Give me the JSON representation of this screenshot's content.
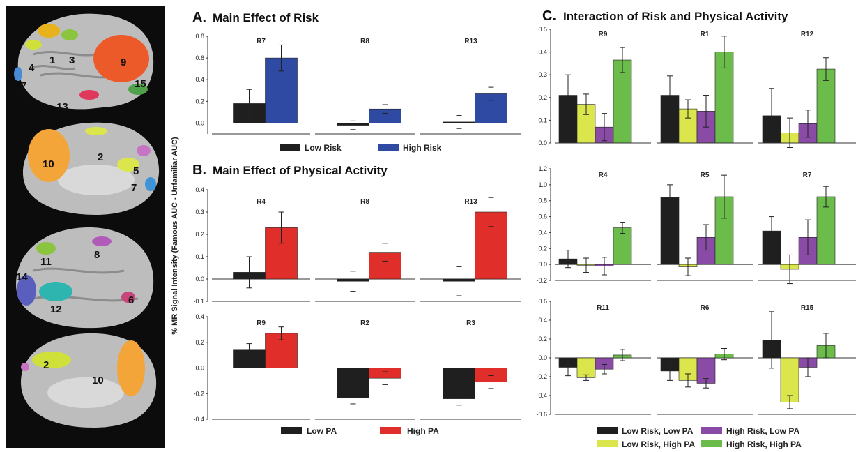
{
  "colors": {
    "low": "#1f1f1f",
    "high_risk": "#2e4aa3",
    "high_pa": "#e02f2a",
    "lr_lpa": "#1f1f1f",
    "lr_hpa": "#dbe64c",
    "hr_lpa": "#8a4ba6",
    "hr_hpa": "#6bbc4a"
  },
  "brain": {
    "labels": [
      "1",
      "3",
      "4",
      "7",
      "9",
      "15",
      "13",
      "10",
      "2",
      "5",
      "7",
      "11",
      "8",
      "14",
      "12",
      "6",
      "2",
      "10"
    ]
  },
  "panels": {
    "a": {
      "letter": "A.",
      "title": "Main Effect of Risk"
    },
    "b": {
      "letter": "B.",
      "title": "Main Effect of Physical Activity"
    },
    "c": {
      "letter": "C.",
      "title": "Interaction of Risk and Physical Activity"
    }
  },
  "y_axis_label": "% MR Signal Intensity (Famous AUC - Unfamiliar AUC)",
  "legends": {
    "a": [
      "Low Risk",
      "High Risk"
    ],
    "b": [
      "Low PA",
      "High PA"
    ],
    "c": [
      "Low Risk, Low PA",
      "High Risk, Low PA",
      "Low Risk, High PA",
      "High Risk, High PA"
    ]
  },
  "chart_data": [
    {
      "type": "bar",
      "panel": "A",
      "title": "Main Effect of Risk",
      "ylim": [
        -0.1,
        0.8
      ],
      "yticks": [
        0.0,
        0.2,
        0.4,
        0.6,
        0.8
      ],
      "series_names": [
        "Low Risk",
        "High Risk"
      ],
      "regions": [
        {
          "name": "R7",
          "values": [
            0.18,
            0.6
          ],
          "errors": [
            0.13,
            0.12
          ]
        },
        {
          "name": "R8",
          "values": [
            -0.02,
            0.13
          ],
          "errors": [
            0.04,
            0.04
          ]
        },
        {
          "name": "R13",
          "values": [
            0.01,
            0.27
          ],
          "errors": [
            0.06,
            0.06
          ]
        }
      ]
    },
    {
      "type": "bar",
      "panel": "B",
      "title": "Main Effect of Physical Activity",
      "ylim": [
        -0.1,
        0.4
      ],
      "yticks": [
        -0.1,
        0.0,
        0.1,
        0.2,
        0.3,
        0.4
      ],
      "series_names": [
        "Low PA",
        "High PA"
      ],
      "regions": [
        {
          "name": "R4",
          "values": [
            0.03,
            0.23
          ],
          "errors": [
            0.07,
            0.07
          ]
        },
        {
          "name": "R8",
          "values": [
            -0.01,
            0.12
          ],
          "errors": [
            0.045,
            0.04
          ]
        },
        {
          "name": "R13",
          "values": [
            -0.01,
            0.3
          ],
          "errors": [
            0.065,
            0.065
          ]
        }
      ]
    },
    {
      "type": "bar",
      "panel": "B",
      "title": "",
      "ylim": [
        -0.4,
        0.4
      ],
      "yticks": [
        -0.4,
        -0.2,
        0.0,
        0.2,
        0.4
      ],
      "series_names": [
        "Low PA",
        "High PA"
      ],
      "regions": [
        {
          "name": "R9",
          "values": [
            0.14,
            0.27
          ],
          "errors": [
            0.05,
            0.05
          ]
        },
        {
          "name": "R2",
          "values": [
            -0.23,
            -0.08
          ],
          "errors": [
            0.05,
            0.05
          ]
        },
        {
          "name": "R3",
          "values": [
            -0.24,
            -0.11
          ],
          "errors": [
            0.05,
            0.05
          ]
        }
      ]
    },
    {
      "type": "bar",
      "panel": "C",
      "title": "Interaction of Risk and Physical Activity",
      "ylim": [
        0,
        0.5
      ],
      "yticks": [
        0.0,
        0.1,
        0.2,
        0.3,
        0.4,
        0.5
      ],
      "series_names": [
        "Low Risk, Low PA",
        "Low Risk, High PA",
        "High Risk, Low PA",
        "High Risk, High PA"
      ],
      "regions": [
        {
          "name": "R9",
          "values": [
            0.21,
            0.17,
            0.07,
            0.365
          ],
          "errors": [
            0.09,
            0.045,
            0.06,
            0.055
          ]
        },
        {
          "name": "R1",
          "values": [
            0.21,
            0.15,
            0.14,
            0.4
          ],
          "errors": [
            0.085,
            0.04,
            0.07,
            0.07
          ]
        },
        {
          "name": "R12",
          "values": [
            0.12,
            0.045,
            0.085,
            0.325
          ],
          "errors": [
            0.12,
            0.065,
            0.06,
            0.05
          ]
        }
      ]
    },
    {
      "type": "bar",
      "panel": "C",
      "title": "",
      "ylim": [
        -0.2,
        1.2
      ],
      "yticks": [
        -0.2,
        0.0,
        0.2,
        0.4,
        0.6,
        0.8,
        1.0,
        1.2
      ],
      "series_names": [
        "Low Risk, Low PA",
        "Low Risk, High PA",
        "High Risk, Low PA",
        "High Risk, High PA"
      ],
      "regions": [
        {
          "name": "R4",
          "values": [
            0.07,
            -0.01,
            -0.02,
            0.46
          ],
          "errors": [
            0.11,
            0.09,
            0.11,
            0.07
          ]
        },
        {
          "name": "R5",
          "values": [
            0.84,
            -0.03,
            0.34,
            0.85
          ],
          "errors": [
            0.16,
            0.11,
            0.16,
            0.27
          ]
        },
        {
          "name": "R7",
          "values": [
            0.42,
            -0.06,
            0.34,
            0.85
          ],
          "errors": [
            0.18,
            0.18,
            0.22,
            0.13
          ]
        }
      ]
    },
    {
      "type": "bar",
      "panel": "C",
      "title": "",
      "ylim": [
        -0.6,
        0.6
      ],
      "yticks": [
        -0.6,
        -0.4,
        -0.2,
        0.0,
        0.2,
        0.4,
        0.6
      ],
      "series_names": [
        "Low Risk, Low PA",
        "Low Risk, High PA",
        "High Risk, Low PA",
        "High Risk, High PA"
      ],
      "regions": [
        {
          "name": "R11",
          "values": [
            -0.1,
            -0.21,
            -0.12,
            0.03
          ],
          "errors": [
            0.09,
            0.03,
            0.05,
            0.06
          ]
        },
        {
          "name": "R6",
          "values": [
            -0.14,
            -0.24,
            -0.27,
            0.04
          ],
          "errors": [
            0.1,
            0.07,
            0.05,
            0.06
          ]
        },
        {
          "name": "R15",
          "values": [
            0.19,
            -0.47,
            -0.1,
            0.13
          ],
          "errors": [
            0.3,
            0.07,
            0.1,
            0.13
          ]
        }
      ]
    }
  ]
}
